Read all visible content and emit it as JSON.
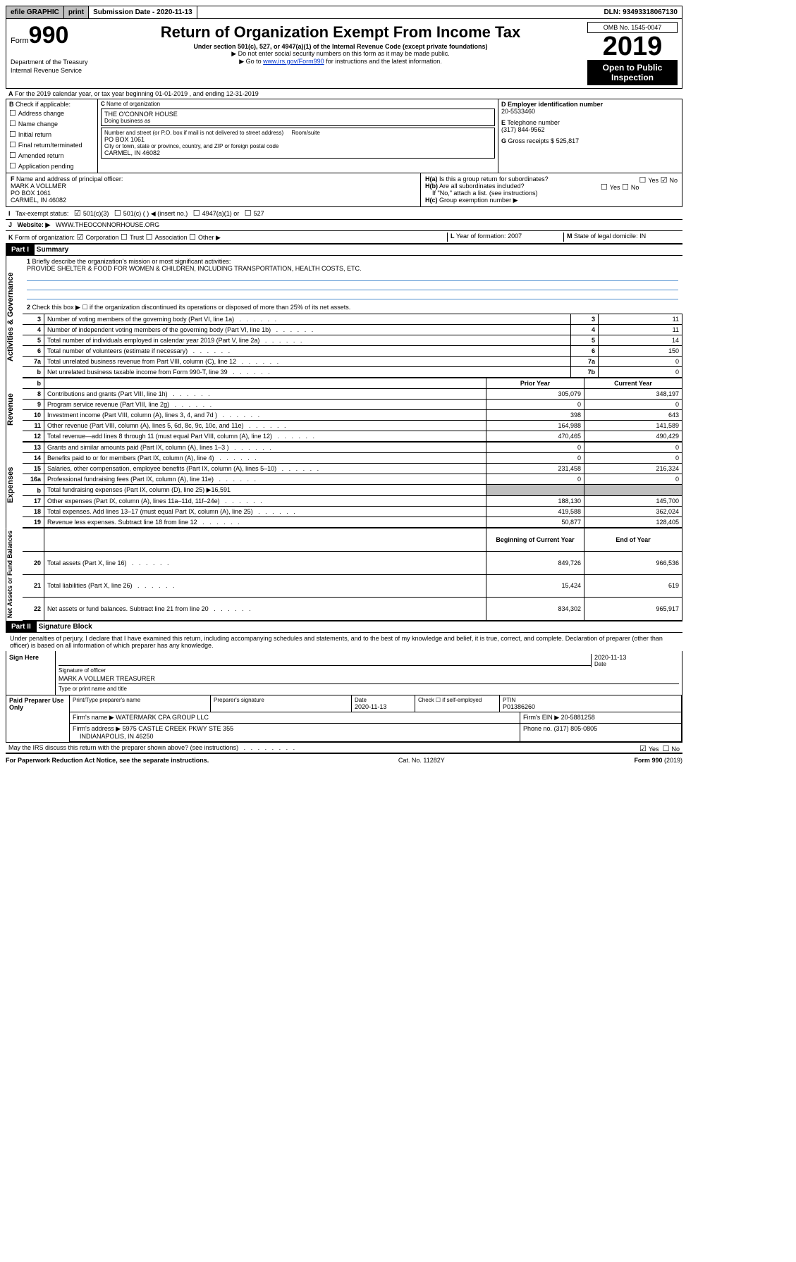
{
  "topbar": {
    "efile": "efile GRAPHIC",
    "print": "print",
    "sd_label": "Submission Date - ",
    "sd_val": "2020-11-13",
    "dln_label": "DLN: ",
    "dln_val": "93493318067130"
  },
  "header": {
    "form_word": "Form",
    "form_num": "990",
    "dept": "Department of the Treasury\nInternal Revenue Service",
    "title": "Return of Organization Exempt From Income Tax",
    "sub1": "Under section 501(c), 527, or 4947(a)(1) of the Internal Revenue Code (except private foundations)",
    "sub2": "▶ Do not enter social security numbers on this form as it may be made public.",
    "sub3a": "▶ Go to ",
    "sub3_link": "www.irs.gov/Form990",
    "sub3b": " for instructions and the latest information.",
    "omb": "OMB No. 1545-0047",
    "year": "2019",
    "otp": "Open to Public Inspection"
  },
  "A": {
    "text": "For the 2019 calendar year, or tax year beginning 01-01-2019    , and ending 12-31-2019"
  },
  "B": {
    "label": "Check if applicable:",
    "opts": [
      "Address change",
      "Name change",
      "Initial return",
      "Final return/terminated",
      "Amended return",
      "Application pending"
    ]
  },
  "C": {
    "name_lbl": "Name of organization",
    "name": "THE O'CONNOR HOUSE",
    "dba_lbl": "Doing business as",
    "dba": "",
    "addr_lbl": "Number and street (or P.O. box if mail is not delivered to street address)",
    "room_lbl": "Room/suite",
    "addr": "PO BOX 1061",
    "city_lbl": "City or town, state or province, country, and ZIP or foreign postal code",
    "city": "CARMEL, IN  46082"
  },
  "D": {
    "lbl": "Employer identification number",
    "val": "20-5533460"
  },
  "E": {
    "lbl": "Telephone number",
    "val": "(317) 844-9562"
  },
  "G": {
    "lbl": "Gross receipts $",
    "val": "525,817"
  },
  "F": {
    "lbl": "Name and address of principal officer:",
    "name": "MARK A VOLLMER",
    "addr1": "PO BOX 1061",
    "addr2": "CARMEL, IN  46082"
  },
  "H": {
    "a": "Is this a group return for subordinates?",
    "b": "Are all subordinates included?",
    "b_note": "If \"No,\" attach a list. (see instructions)",
    "c": "Group exemption number ▶",
    "yes": "Yes",
    "no": "No"
  },
  "I": {
    "lbl": "Tax-exempt status:",
    "o1": "501(c)(3)",
    "o2": "501(c) (   ) ◀ (insert no.)",
    "o3": "4947(a)(1) or",
    "o4": "527"
  },
  "J": {
    "lbl": "Website: ▶",
    "val": "WWW.THEOCONNORHOUSE.ORG"
  },
  "K": {
    "lbl": "Form of organization:",
    "o1": "Corporation",
    "o2": "Trust",
    "o3": "Association",
    "o4": "Other ▶"
  },
  "L": {
    "lbl": "Year of formation:",
    "val": "2007"
  },
  "M": {
    "lbl": "State of legal domicile:",
    "val": "IN"
  },
  "part1": {
    "hdr": "Part I",
    "title": "Summary",
    "q1": "Briefly describe the organization's mission or most significant activities:",
    "mission": "PROVIDE SHELTER & FOOD FOR WOMEN & CHILDREN, INCLUDING TRANSPORTATION, HEALTH COSTS, ETC.",
    "q2": "Check this box ▶ ☐  if the organization discontinued its operations or disposed of more than 25% of its net assets.",
    "gov": [
      {
        "n": "3",
        "t": "Number of voting members of the governing body (Part VI, line 1a)",
        "b": "3",
        "v": "11"
      },
      {
        "n": "4",
        "t": "Number of independent voting members of the governing body (Part VI, line 1b)",
        "b": "4",
        "v": "11"
      },
      {
        "n": "5",
        "t": "Total number of individuals employed in calendar year 2019 (Part V, line 2a)",
        "b": "5",
        "v": "14"
      },
      {
        "n": "6",
        "t": "Total number of volunteers (estimate if necessary)",
        "b": "6",
        "v": "150"
      },
      {
        "n": "7a",
        "t": "Total unrelated business revenue from Part VIII, column (C), line 12",
        "b": "7a",
        "v": "0"
      },
      {
        "n": "b",
        "t": "Net unrelated business taxable income from Form 990-T, line 39",
        "b": "7b",
        "v": "0"
      }
    ],
    "col_py": "Prior Year",
    "col_cy": "Current Year",
    "rev": [
      {
        "n": "8",
        "t": "Contributions and grants (Part VIII, line 1h)",
        "p": "305,079",
        "c": "348,197"
      },
      {
        "n": "9",
        "t": "Program service revenue (Part VIII, line 2g)",
        "p": "0",
        "c": "0"
      },
      {
        "n": "10",
        "t": "Investment income (Part VIII, column (A), lines 3, 4, and 7d )",
        "p": "398",
        "c": "643"
      },
      {
        "n": "11",
        "t": "Other revenue (Part VIII, column (A), lines 5, 6d, 8c, 9c, 10c, and 11e)",
        "p": "164,988",
        "c": "141,589"
      },
      {
        "n": "12",
        "t": "Total revenue—add lines 8 through 11 (must equal Part VIII, column (A), line 12)",
        "p": "470,465",
        "c": "490,429"
      }
    ],
    "exp": [
      {
        "n": "13",
        "t": "Grants and similar amounts paid (Part IX, column (A), lines 1–3 )",
        "p": "0",
        "c": "0"
      },
      {
        "n": "14",
        "t": "Benefits paid to or for members (Part IX, column (A), line 4)",
        "p": "0",
        "c": "0"
      },
      {
        "n": "15",
        "t": "Salaries, other compensation, employee benefits (Part IX, column (A), lines 5–10)",
        "p": "231,458",
        "c": "216,324"
      },
      {
        "n": "16a",
        "t": "Professional fundraising fees (Part IX, column (A), line 11e)",
        "p": "0",
        "c": "0"
      },
      {
        "n": "b",
        "t": "Total fundraising expenses (Part IX, column (D), line 25) ▶16,591",
        "p": "",
        "c": ""
      },
      {
        "n": "17",
        "t": "Other expenses (Part IX, column (A), lines 11a–11d, 11f–24e)",
        "p": "188,130",
        "c": "145,700"
      },
      {
        "n": "18",
        "t": "Total expenses. Add lines 13–17 (must equal Part IX, column (A), line 25)",
        "p": "419,588",
        "c": "362,024"
      },
      {
        "n": "19",
        "t": "Revenue less expenses. Subtract line 18 from line 12",
        "p": "50,877",
        "c": "128,405"
      }
    ],
    "col_boy": "Beginning of Current Year",
    "col_eoy": "End of Year",
    "na": [
      {
        "n": "20",
        "t": "Total assets (Part X, line 16)",
        "p": "849,726",
        "c": "966,536"
      },
      {
        "n": "21",
        "t": "Total liabilities (Part X, line 26)",
        "p": "15,424",
        "c": "619"
      },
      {
        "n": "22",
        "t": "Net assets or fund balances. Subtract line 21 from line 20",
        "p": "834,302",
        "c": "965,917"
      }
    ]
  },
  "part2": {
    "hdr": "Part II",
    "title": "Signature Block",
    "decl": "Under penalties of perjury, I declare that I have examined this return, including accompanying schedules and statements, and to the best of my knowledge and belief, it is true, correct, and complete. Declaration of preparer (other than officer) is based on all information of which preparer has any knowledge.",
    "sign_here": "Sign Here",
    "sig_officer": "Signature of officer",
    "date": "2020-11-13",
    "date_lbl": "Date",
    "name": "MARK A VOLLMER  TREASURER",
    "name_lbl": "Type or print name and title",
    "paid": "Paid Preparer Use Only",
    "pp_name_lbl": "Print/Type preparer's name",
    "pp_sig_lbl": "Preparer's signature",
    "pp_date_lbl": "Date",
    "pp_date": "2020-11-13",
    "pp_check": "Check ☐ if self-employed",
    "ptin_lbl": "PTIN",
    "ptin": "P01386260",
    "firm_name_lbl": "Firm's name   ▶",
    "firm_name": "WATERMARK CPA GROUP LLC",
    "firm_ein_lbl": "Firm's EIN ▶",
    "firm_ein": "20-5881258",
    "firm_addr_lbl": "Firm's address ▶",
    "firm_addr": "5975 CASTLE CREEK PKWY STE 355",
    "firm_city": "INDIANAPOLIS, IN  46250",
    "phone_lbl": "Phone no.",
    "phone": "(317) 805-0805",
    "discuss": "May the IRS discuss this return with the preparer shown above? (see instructions)"
  },
  "foot": {
    "pra": "For Paperwork Reduction Act Notice, see the separate instructions.",
    "cat": "Cat. No. 11282Y",
    "form": "Form 990 (2019)"
  }
}
